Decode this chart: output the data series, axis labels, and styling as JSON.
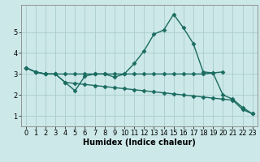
{
  "xlabel": "Humidex (Indice chaleur)",
  "bg_color": "#cce8e8",
  "grid_color": "#aacccc",
  "line_color": "#1a6b60",
  "ylim": [
    0.5,
    6.3
  ],
  "yticks": [
    1,
    2,
    3,
    4,
    5
  ],
  "xlim": [
    -0.5,
    23.5
  ],
  "xticks": [
    0,
    1,
    2,
    3,
    4,
    5,
    6,
    7,
    8,
    9,
    10,
    11,
    12,
    13,
    14,
    15,
    16,
    17,
    18,
    19,
    20,
    21,
    22,
    23
  ],
  "line1_x": [
    0,
    1,
    2,
    3,
    4,
    5,
    6,
    7,
    8,
    9,
    10,
    11,
    12,
    13,
    14,
    15,
    16,
    17,
    18,
    19,
    20
  ],
  "line1_y": [
    3.3,
    3.1,
    3.0,
    3.0,
    3.0,
    3.0,
    3.0,
    3.0,
    3.0,
    3.0,
    3.0,
    3.0,
    3.0,
    3.0,
    3.0,
    3.0,
    3.0,
    3.0,
    3.0,
    3.05,
    3.1
  ],
  "line2_x": [
    0,
    1,
    2,
    3,
    4,
    5,
    6,
    7,
    8,
    9,
    10,
    11,
    12,
    13,
    14,
    15,
    16,
    17,
    18,
    19,
    20,
    21,
    22,
    23
  ],
  "line2_y": [
    3.3,
    3.1,
    3.0,
    3.0,
    2.6,
    2.2,
    2.9,
    3.0,
    3.0,
    2.85,
    3.0,
    3.5,
    4.1,
    4.9,
    5.1,
    5.85,
    5.2,
    4.45,
    3.1,
    3.05,
    2.0,
    1.8,
    1.4,
    1.1
  ],
  "line3_x": [
    0,
    1,
    2,
    3,
    4,
    5,
    6,
    7,
    8,
    9,
    10,
    11,
    12,
    13,
    14,
    15,
    16,
    17,
    18,
    19,
    20,
    21,
    22,
    23
  ],
  "line3_y": [
    3.3,
    3.1,
    3.0,
    3.0,
    2.6,
    2.55,
    2.5,
    2.45,
    2.4,
    2.35,
    2.3,
    2.25,
    2.2,
    2.15,
    2.1,
    2.05,
    2.0,
    1.95,
    1.9,
    1.85,
    1.8,
    1.75,
    1.3,
    1.1
  ],
  "marker": "D",
  "markersize": 2.5,
  "linewidth": 1.0,
  "xlabel_fontsize": 7,
  "tick_fontsize": 6
}
